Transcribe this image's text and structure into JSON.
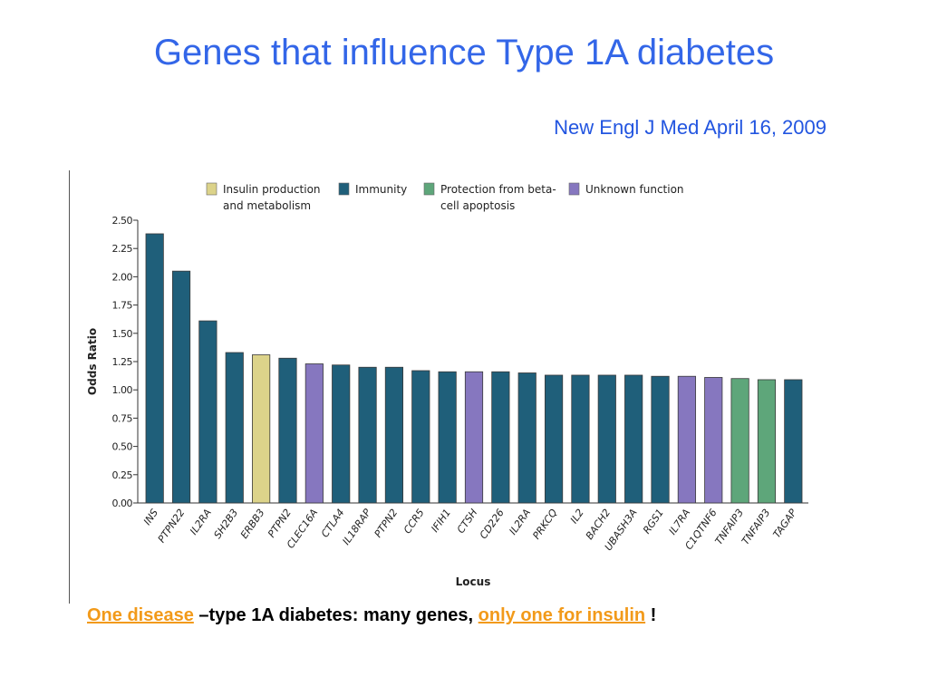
{
  "slide": {
    "title": "Genes that influence Type 1A diabetes",
    "citation": "New Engl J Med April 16, 2009",
    "caption": {
      "part1": "One disease",
      "part2": " –type 1A diabetes: many genes, ",
      "part3": "only one for insulin",
      "part4": " !",
      "highlight_color": "#f29a1a"
    }
  },
  "chart_data": {
    "type": "bar",
    "xlabel": "Locus",
    "ylabel": "Odds Ratio",
    "ylim": [
      0,
      2.5
    ],
    "yticks": [
      "0.00",
      "0.25",
      "0.50",
      "0.75",
      "1.00",
      "1.25",
      "1.50",
      "1.75",
      "2.00",
      "2.25",
      "2.50"
    ],
    "legend": [
      {
        "key": "insulin",
        "label_lines": [
          "Insulin production",
          "and metabolism"
        ],
        "color": "#dcd38a"
      },
      {
        "key": "immunity",
        "label_lines": [
          "Immunity"
        ],
        "color": "#1f5f7a"
      },
      {
        "key": "protection",
        "label_lines": [
          "Protection from beta-",
          "cell apoptosis"
        ],
        "color": "#5ea67a"
      },
      {
        "key": "unknown",
        "label_lines": [
          "Unknown function"
        ],
        "color": "#8677bf"
      }
    ],
    "categories": [
      "INS",
      "PTPN22",
      "IL2RA",
      "SH2B3",
      "ERBB3",
      "PTPN2",
      "CLEC16A",
      "CTLA4",
      "IL18RAP",
      "PTPN2",
      "CCR5",
      "IFIH1",
      "CTSH",
      "CD226",
      "IL2RA",
      "PRKCQ",
      "IL2",
      "BACH2",
      "UBASH3A",
      "RGS1",
      "IL7RA",
      "C1QTNF6",
      "TNFAIP3",
      "TNFAIP3",
      "TAGAP"
    ],
    "values": [
      2.38,
      2.05,
      1.61,
      1.33,
      1.31,
      1.28,
      1.23,
      1.22,
      1.2,
      1.2,
      1.17,
      1.16,
      1.16,
      1.16,
      1.15,
      1.13,
      1.13,
      1.13,
      1.13,
      1.12,
      1.12,
      1.11,
      1.1,
      1.09,
      1.09
    ],
    "groups": [
      "immunity",
      "immunity",
      "immunity",
      "immunity",
      "insulin",
      "immunity",
      "unknown",
      "immunity",
      "immunity",
      "immunity",
      "immunity",
      "immunity",
      "unknown",
      "immunity",
      "immunity",
      "immunity",
      "immunity",
      "immunity",
      "immunity",
      "immunity",
      "unknown",
      "unknown",
      "protection",
      "protection",
      "immunity"
    ],
    "grid": false,
    "legend_position": "top"
  }
}
